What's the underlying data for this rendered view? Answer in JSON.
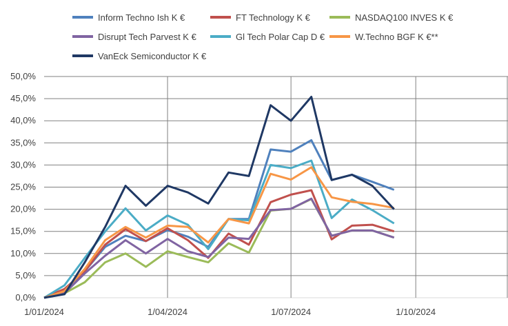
{
  "chart_data": {
    "type": "line",
    "title": "",
    "xlabel": "",
    "ylabel": "",
    "x_tick_labels": [
      "1/01/2024",
      "1/04/2024",
      "1/07/2024",
      "1/10/2024"
    ],
    "x_tick_days": [
      0,
      91,
      182,
      274
    ],
    "x_range_days": [
      0,
      342
    ],
    "y_tick_labels": [
      "0,0%",
      "5,0%",
      "10,0%",
      "15,0%",
      "20,0%",
      "25,0%",
      "30,0%",
      "35,0%",
      "40,0%",
      "45,0%",
      "50,0%"
    ],
    "ylim": [
      0,
      50
    ],
    "grid": "both",
    "legend_position": "top",
    "x_days": [
      0,
      15,
      30,
      45,
      60,
      75,
      91,
      106,
      121,
      136,
      151,
      167,
      182,
      197,
      212,
      227,
      242,
      258
    ],
    "series": [
      {
        "name": "Inform Techno Ish K €",
        "color": "#4f81bd",
        "values": [
          0,
          1.5,
          6,
          11.5,
          14,
          12.8,
          15.3,
          13.8,
          11.5,
          17.8,
          17.8,
          33.5,
          33,
          35.6,
          26.6,
          27.8,
          26.2,
          24.4
        ]
      },
      {
        "name": "FT Technology K €",
        "color": "#c0504d",
        "values": [
          0,
          2,
          6,
          12,
          15.5,
          12.8,
          15.7,
          13,
          9,
          14.5,
          12,
          21.6,
          23.3,
          24.3,
          13.2,
          16.3,
          16.5,
          15
        ]
      },
      {
        "name": "NASDAQ100 INVES K €",
        "color": "#9bbb59",
        "values": [
          0,
          1,
          3.5,
          8,
          10,
          7,
          10.5,
          9.2,
          8,
          12.3,
          10.2,
          19.7,
          20.1,
          22.3,
          14,
          15.2,
          15.2,
          13.6
        ]
      },
      {
        "name": "Disrupt Tech Parvest K €",
        "color": "#8064a2",
        "values": [
          0,
          1,
          5.5,
          9.5,
          13,
          10,
          13.3,
          10.5,
          9.2,
          13.6,
          13.3,
          19.8,
          20.1,
          22.4,
          14,
          15.2,
          15.2,
          13.6
        ]
      },
      {
        "name": "Gl Tech Polar Cap D €",
        "color": "#4bacc6",
        "values": [
          0,
          2.8,
          9,
          15,
          20.2,
          15.2,
          18.6,
          16.5,
          11,
          17.8,
          17.5,
          30,
          29.3,
          31,
          18,
          22.2,
          19.8,
          16.8
        ]
      },
      {
        "name": "W.Techno BGF K €**",
        "color": "#f79646",
        "values": [
          0,
          1.5,
          6.5,
          13,
          16,
          13.6,
          16.3,
          16,
          12.5,
          17.8,
          16.8,
          28,
          26.7,
          29.5,
          22.7,
          21.7,
          21.2,
          20.3
        ]
      },
      {
        "name": "VanEck Semiconductor K €",
        "color": "#1f3864",
        "values": [
          0,
          0.8,
          8,
          16,
          25.3,
          20.8,
          25.3,
          23.8,
          21.3,
          28.3,
          27.5,
          43.5,
          40,
          45.4,
          26.6,
          27.8,
          25.3,
          20
        ]
      }
    ]
  }
}
